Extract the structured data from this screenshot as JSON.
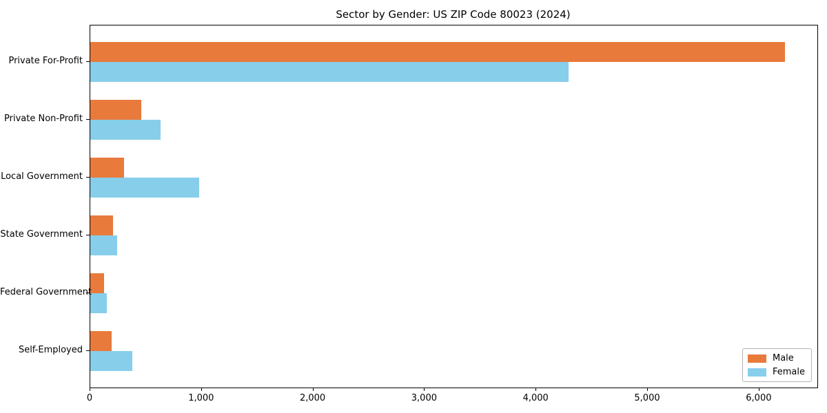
{
  "title": "Sector by Gender: US ZIP Code 80023 (2024)",
  "chart_data": {
    "type": "bar",
    "orientation": "horizontal",
    "title": "Sector by Gender: US ZIP Code 80023 (2024)",
    "categories": [
      "Private For-Profit",
      "Private Non-Profit",
      "Local Government",
      "State Government",
      "Federal Government",
      "Self-Employed"
    ],
    "series": [
      {
        "name": "Male",
        "color": "#E87A3C",
        "values": [
          6230,
          460,
          300,
          205,
          125,
          190
        ]
      },
      {
        "name": "Female",
        "color": "#87CEEB",
        "values": [
          4290,
          630,
          975,
          240,
          145,
          375
        ]
      }
    ],
    "xlabel": "",
    "ylabel": "",
    "xlim": [
      0,
      6520
    ],
    "x_ticks": [
      0,
      1000,
      2000,
      3000,
      4000,
      5000,
      6000
    ],
    "x_tick_labels": [
      "0",
      "1,000",
      "2,000",
      "3,000",
      "4,000",
      "5,000",
      "6,000"
    ],
    "grid": false,
    "legend_position": "lower right",
    "background": "#ffffff",
    "frame_color": "#000000"
  },
  "legend": {
    "items": [
      {
        "label": "Male",
        "color": "#E87A3C"
      },
      {
        "label": "Female",
        "color": "#87CEEB"
      }
    ]
  }
}
